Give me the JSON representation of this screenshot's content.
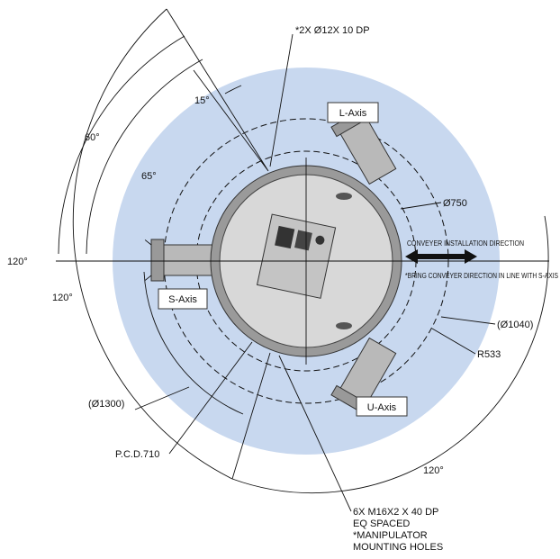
{
  "dimensions": {
    "holes_top": "*2X Ø12X 10 DP",
    "angle_15": "15°",
    "angle_60": "60°",
    "angle_65": "65°",
    "angle_120_left": "120°",
    "angle_120_inner": "120°",
    "angle_120_bottom": "120°",
    "dia_750": "Ø750",
    "dia_1040": "(Ø1040)",
    "r_533": "R533",
    "dia_1300": "(Ø1300)",
    "pcd": "P.C.D.710"
  },
  "axes": {
    "l": "L-Axis",
    "s": "S-Axis",
    "u": "U-Axis"
  },
  "conveyer": {
    "direction": "CONVEYER INSTALLATION DIRECTION",
    "note": "*BRING CONVEYER DIRECTION IN LINE WITH S-AXIS"
  },
  "mounting": [
    "6X M16X2 X  40 DP",
    "EQ SPACED",
    "*MANIPULATOR",
    "MOUNTING HOLES"
  ]
}
